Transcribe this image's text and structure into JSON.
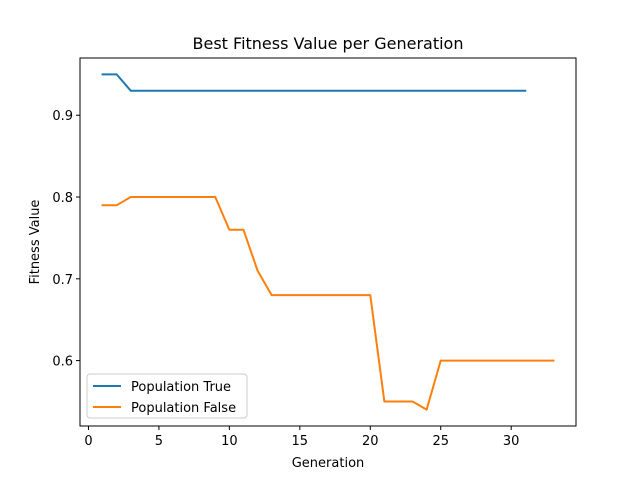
{
  "chart_data": {
    "type": "line",
    "title": "Best Fitness Value per Generation",
    "xlabel": "Generation",
    "ylabel": "Fitness Value",
    "xlim": [
      -0.6,
      34.6
    ],
    "ylim": [
      0.52,
      0.97
    ],
    "x_ticks": [
      0,
      5,
      10,
      15,
      20,
      25,
      30
    ],
    "y_ticks": [
      0.6,
      0.7,
      0.8,
      0.9
    ],
    "y_tick_labels": [
      "0.6",
      "0.7",
      "0.8",
      "0.9"
    ],
    "grid": false,
    "legend_position": "lower-left",
    "series": [
      {
        "name": "Population True",
        "color": "#1f77b4",
        "x": [
          1,
          2,
          3,
          4,
          5,
          6,
          7,
          8,
          9,
          10,
          11,
          12,
          13,
          14,
          15,
          16,
          17,
          18,
          19,
          20,
          21,
          22,
          23,
          24,
          25,
          26,
          27,
          28,
          29,
          30,
          31
        ],
        "y": [
          0.95,
          0.95,
          0.93,
          0.93,
          0.93,
          0.93,
          0.93,
          0.93,
          0.93,
          0.93,
          0.93,
          0.93,
          0.93,
          0.93,
          0.93,
          0.93,
          0.93,
          0.93,
          0.93,
          0.93,
          0.93,
          0.93,
          0.93,
          0.93,
          0.93,
          0.93,
          0.93,
          0.93,
          0.93,
          0.93,
          0.93
        ]
      },
      {
        "name": "Population False",
        "color": "#ff7f0e",
        "x": [
          1,
          2,
          3,
          4,
          5,
          6,
          7,
          8,
          9,
          10,
          11,
          12,
          13,
          14,
          15,
          16,
          17,
          18,
          19,
          20,
          21,
          22,
          23,
          24,
          25,
          26,
          27,
          28,
          29,
          30,
          31,
          32,
          33
        ],
        "y": [
          0.79,
          0.79,
          0.8,
          0.8,
          0.8,
          0.8,
          0.8,
          0.8,
          0.8,
          0.76,
          0.76,
          0.71,
          0.68,
          0.68,
          0.68,
          0.68,
          0.68,
          0.68,
          0.68,
          0.68,
          0.55,
          0.55,
          0.55,
          0.54,
          0.6,
          0.6,
          0.6,
          0.6,
          0.6,
          0.6,
          0.6,
          0.6,
          0.6
        ]
      }
    ]
  }
}
